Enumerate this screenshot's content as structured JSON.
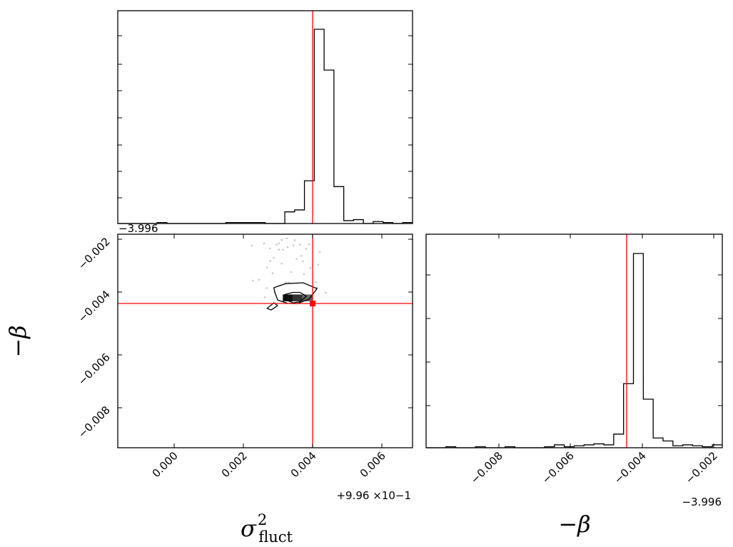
{
  "chart_data": [
    {
      "type": "histogram",
      "panel": "top-left",
      "variable": "sigma2_fluct",
      "x_range": [
        0.99538,
        1.00288
      ],
      "x_data_offset": 0.996,
      "y_ticks_labeled": false,
      "bins_x": [
        0.99588,
        0.99988
      ],
      "values": [
        0,
        0,
        0,
        0,
        0.005,
        0,
        0,
        0,
        0,
        0,
        0,
        0.005,
        0.005,
        0.005,
        0.005,
        0,
        0,
        0.06,
        0.07,
        0.22,
        1.0,
        0.79,
        0.19,
        0.015,
        0.02,
        0,
        0.01,
        0.005,
        0,
        0.005
      ],
      "truth": 0.9999,
      "truth_color": "#ff0000"
    },
    {
      "type": "contour",
      "panel": "bottom-left",
      "x_variable": "sigma2_fluct",
      "y_variable": "-beta",
      "x_range": [
        0.99538,
        1.00288
      ],
      "y_range": [
        -4.0055,
        -3.99772
      ],
      "x_tick_labels": [
        "0.000",
        "0.002",
        "0.004",
        "0.006"
      ],
      "x_offset_label": "+9.96 ×10−1",
      "y_tick_labels": [
        "−0.002",
        "−0.004",
        "−0.006",
        "−0.008"
      ],
      "y_offset_label": "−3.996",
      "truth": [
        0.9999,
        -4.0003
      ],
      "truth_color": "#ff0000",
      "samples": [
        [
          0.99968,
          -3.99787
        ],
        [
          0.99955,
          -3.99793
        ],
        [
          0.99988,
          -3.99794
        ],
        [
          0.99948,
          -3.99805
        ],
        [
          0.9991,
          -3.99806
        ],
        [
          0.99985,
          -3.99813
        ],
        [
          1.00025,
          -3.99809
        ],
        [
          0.99942,
          -3.9981
        ],
        [
          0.99925,
          -3.99824
        ],
        [
          1.00002,
          -3.9981
        ],
        [
          0.9997,
          -3.99819
        ],
        [
          0.99958,
          -3.99828
        ],
        [
          1.00017,
          -3.99825
        ],
        [
          1.00052,
          -3.99837
        ],
        [
          1.00005,
          -3.99851
        ],
        [
          0.99935,
          -3.99858
        ],
        [
          0.99993,
          -3.99862
        ],
        [
          0.99926,
          -3.9987
        ],
        [
          1.00009,
          -3.99871
        ],
        [
          0.99955,
          -3.99879
        ],
        [
          1.00048,
          -3.99883
        ],
        [
          0.99918,
          -3.99893
        ],
        [
          1.00028,
          -3.99895
        ],
        [
          0.99979,
          -3.9991
        ],
        [
          0.99932,
          -3.99914
        ],
        [
          1.00012,
          -3.99917
        ],
        [
          1.00067,
          -3.99985
        ],
        [
          0.99882,
          -3.99941
        ],
        [
          0.99898,
          -3.99938
        ],
        [
          0.99973,
          -3.99948
        ],
        [
          1.00045,
          -3.99966
        ],
        [
          0.99966,
          -3.99948
        ],
        [
          0.99937,
          -3.99982
        ],
        [
          0.99912,
          -4.00002
        ],
        [
          1.00013,
          -4.00005
        ],
        [
          0.99963,
          -4.00011
        ],
        [
          0.99948,
          -3.99828
        ],
        [
          0.9999,
          -3.99998
        ],
        [
          0.99917,
          -3.99968
        ],
        [
          1.00043,
          -3.99948
        ],
        [
          0.99879,
          -3.99814
        ]
      ],
      "contours": [
        [
          [
            0.99935,
            -3.99967
          ],
          [
            0.99965,
            -3.99952
          ],
          [
            1.0001,
            -3.99949
          ],
          [
            1.00045,
            -3.9997
          ],
          [
            1.00025,
            -4.00008
          ],
          [
            0.99995,
            -4.00025
          ],
          [
            0.9997,
            -4.00024
          ],
          [
            0.99945,
            -4.00012
          ],
          [
            0.99938,
            -3.99985
          ],
          [
            0.99935,
            -3.99967
          ]
        ],
        [
          [
            0.99962,
            -3.99992
          ],
          [
            0.99983,
            -3.99984
          ],
          [
            1.00002,
            -3.99984
          ],
          [
            1.00018,
            -3.99998
          ],
          [
            1.00002,
            -4.00018
          ],
          [
            0.99985,
            -4.00022
          ],
          [
            0.99968,
            -4.00013
          ],
          [
            0.99962,
            -3.99992
          ]
        ],
        [
          [
            0.99945,
            -4.00032
          ],
          [
            0.99928,
            -4.00048
          ],
          [
            0.99918,
            -4.00042
          ],
          [
            0.99935,
            -4.00022
          ],
          [
            0.99945,
            -4.00032
          ]
        ]
      ],
      "core_cells": [
        [
          0.99983,
          -4.00004,
          0.00025,
          0.00025
        ],
        [
          1.00008,
          -4.00004,
          0.00025,
          0.00025
        ],
        [
          1.00033,
          -4.00004,
          0.00025,
          0.00025
        ]
      ]
    },
    {
      "type": "histogram",
      "panel": "bottom-right",
      "variable": "-beta",
      "x_range": [
        -4.0055,
        -3.99772
      ],
      "x_tick_labels": [
        "−0.008",
        "−0.006",
        "−0.004",
        "−0.002"
      ],
      "x_offset_label": "−3.996",
      "y_ticks_labeled": false,
      "bins_x": [
        -4.0055,
        -4.00009
      ],
      "values": [
        0,
        0,
        0.005,
        0,
        0,
        0.005,
        0,
        0,
        0.005,
        0,
        0,
        0,
        0.005,
        0.015,
        0.005,
        0.01,
        0.015,
        0.02,
        0.015,
        0.07,
        0.33,
        1.0,
        0.25,
        0.05,
        0.035,
        0.01,
        0.015,
        0.01,
        0.005,
        0.015
      ],
      "truth": -4.00025,
      "truth_color": "#ff0000"
    }
  ],
  "axis_labels": {
    "x_left": "σ",
    "x_left_sup": "2",
    "x_left_sub": "fluct",
    "x_right": "−β",
    "y_left": "−β"
  }
}
